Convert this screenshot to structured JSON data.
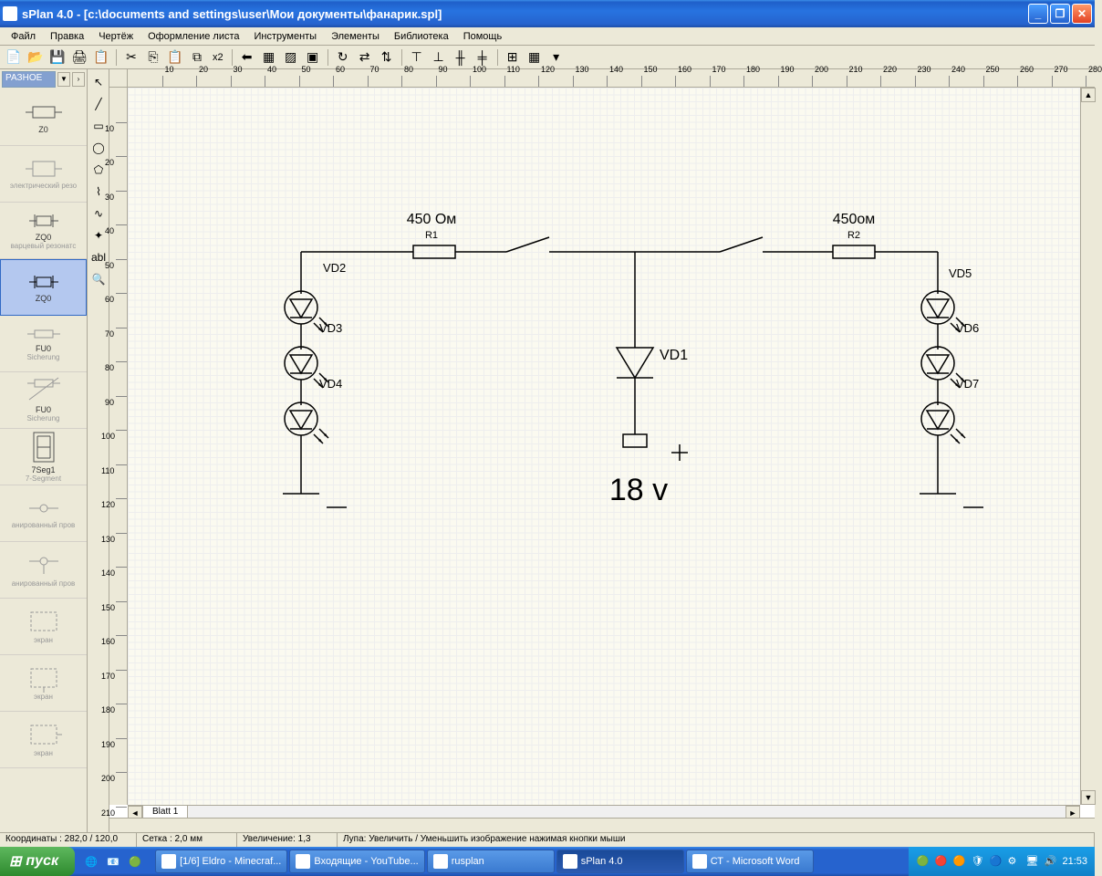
{
  "window": {
    "title": "sPlan 4.0 - [c:\\documents and settings\\user\\Мои документы\\фанарик.spl]"
  },
  "menu": [
    "Файл",
    "Правка",
    "Чертёж",
    "Оформление листа",
    "Инструменты",
    "Элементы",
    "Библиотека",
    "Помощь"
  ],
  "toolbar": {
    "x2": "x2"
  },
  "leftpanel": {
    "dropdown": "РАЗНОЕ",
    "items": [
      {
        "label": "Z0",
        "sub": ""
      },
      {
        "label": "",
        "sub": "электрический резо"
      },
      {
        "label": "ZQ0",
        "sub": "варцевый резонатс"
      },
      {
        "label": "ZQ0",
        "sub": "",
        "selected": true
      },
      {
        "label": "FU0",
        "sub": "Sicherung"
      },
      {
        "label": "FU0",
        "sub": "Sicherung"
      },
      {
        "label": "7Seg1",
        "sub": "7-Segment"
      },
      {
        "label": "",
        "sub": "анированный пров"
      },
      {
        "label": "",
        "sub": "анированный пров"
      },
      {
        "label": "",
        "sub": "экран"
      },
      {
        "label": "",
        "sub": "экран"
      },
      {
        "label": "",
        "sub": "экран"
      }
    ]
  },
  "ruler": {
    "h": [
      10,
      20,
      30,
      40,
      50,
      60,
      70,
      80,
      90,
      100,
      110,
      120,
      130,
      140,
      150,
      160,
      170,
      180,
      190,
      200,
      210,
      220,
      230,
      240,
      250,
      260,
      270,
      280
    ],
    "v": [
      10,
      20,
      30,
      40,
      50,
      60,
      70,
      80,
      90,
      100,
      110,
      120,
      130,
      140,
      150,
      160,
      170,
      180,
      190,
      200,
      210
    ]
  },
  "schematic": {
    "r1": {
      "value": "450 Ом",
      "name": "R1"
    },
    "r2": {
      "value": "450ом",
      "name": "R2"
    },
    "vd1": "VD1",
    "vd2": "VD2",
    "vd3": "VD3",
    "vd4": "VD4",
    "vd5": "VD5",
    "vd6": "VD6",
    "vd7": "VD7",
    "voltage": "18 v"
  },
  "tabs": {
    "blatt1": "Blatt 1"
  },
  "status": {
    "coords_label": "Координаты :",
    "coords": "282,0 / 120,0",
    "grid": "Сетка : 2,0 мм",
    "zoom": "Увеличение: 1,3",
    "hint": "Лупа: Увеличить / Уменьшить изображение нажимая кнопки мыши"
  },
  "taskbar": {
    "start": "пуск",
    "tasks": [
      {
        "label": "[1/6] Eldro - Minecraf...",
        "active": false
      },
      {
        "label": "Входящие - YouTube...",
        "active": false
      },
      {
        "label": "rusplan",
        "active": false
      },
      {
        "label": "sPlan 4.0",
        "active": true
      },
      {
        "label": "СТ - Microsoft Word",
        "active": false
      }
    ],
    "clock": "21:53"
  }
}
